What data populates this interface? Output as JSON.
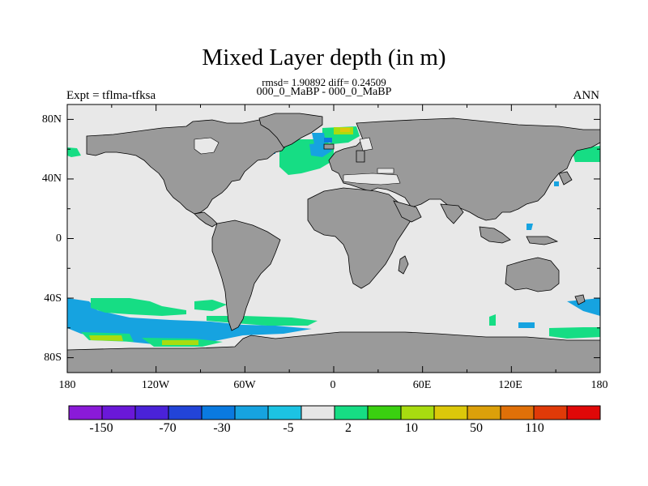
{
  "title": "Mixed Layer depth (in m)",
  "stats_line": "rmsd= 1.90892 diff= 0.24509",
  "comparison_line": "000_0_MaBP - 000_0_MaBP",
  "experiment_label": "Expt = tflma-tfksa",
  "season_label": "ANN",
  "map": {
    "lat_ticks": [
      "80N",
      "40N",
      "0",
      "40S",
      "80S"
    ],
    "lon_ticks": [
      "180",
      "120W",
      "60W",
      "0",
      "60E",
      "120E",
      "180"
    ],
    "colors": {
      "ocean_background": "#e8e8e8",
      "land": "#9a9a9a",
      "land_edge": "#000000"
    }
  },
  "colorbar": {
    "labels": [
      "-150",
      "-70",
      "-30",
      "-5",
      "2",
      "10",
      "50",
      "110"
    ],
    "colors": [
      "#8a1ad8",
      "#6a18d8",
      "#4a22d8",
      "#2244d8",
      "#0a7ae0",
      "#16a3e0",
      "#1cc3e3",
      "#e6e6e6",
      "#16dd84",
      "#3ad010",
      "#a8dc10",
      "#dcc80a",
      "#dca00a",
      "#e07008",
      "#e03a08",
      "#e00808"
    ]
  }
}
